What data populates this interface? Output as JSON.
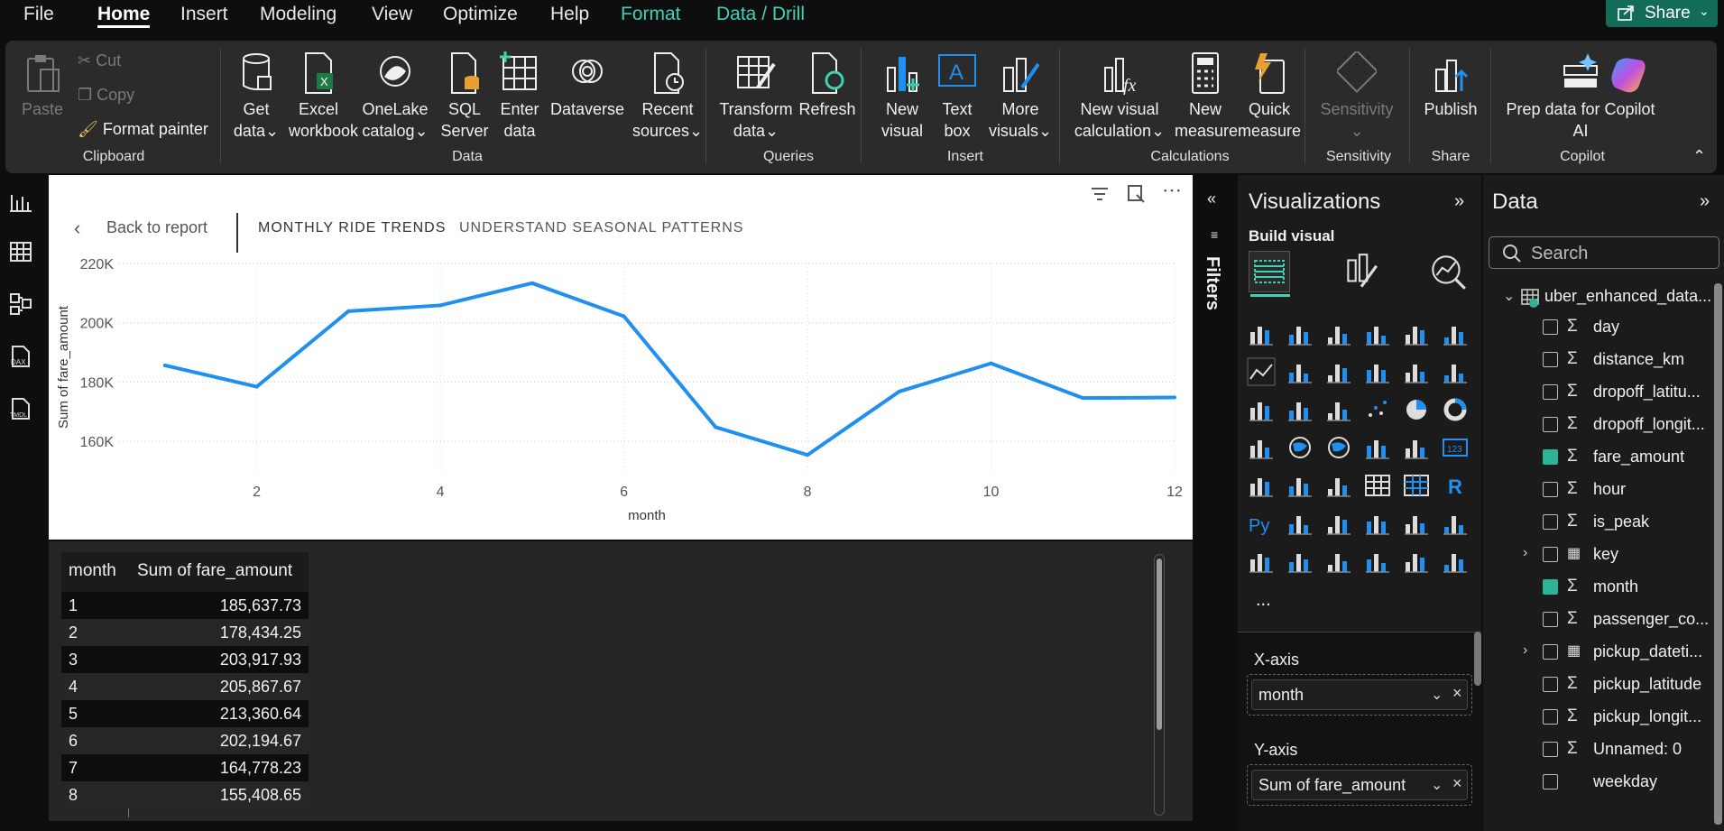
{
  "menu": {
    "items": [
      "File",
      "Home",
      "Insert",
      "Modeling",
      "View",
      "Optimize",
      "Help",
      "Format",
      "Data / Drill"
    ],
    "share_label": "Share"
  },
  "ribbon": {
    "clipboard": {
      "paste": "Paste",
      "cut": "Cut",
      "copy": "Copy",
      "format_painter": "Format painter",
      "label": "Clipboard"
    },
    "data": {
      "get_data": [
        "Get",
        "data"
      ],
      "excel": [
        "Excel",
        "workbook"
      ],
      "onelake": [
        "OneLake",
        "catalog"
      ],
      "sql": [
        "SQL",
        "Server"
      ],
      "enter": [
        "Enter",
        "data"
      ],
      "dataverse": [
        "Dataverse"
      ],
      "recent": [
        "Recent",
        "sources"
      ],
      "label": "Data"
    },
    "queries": {
      "transform": [
        "Transform",
        "data"
      ],
      "refresh": [
        "Refresh"
      ],
      "label": "Queries"
    },
    "insert": {
      "new_visual": [
        "New",
        "visual"
      ],
      "text_box": [
        "Text",
        "box"
      ],
      "more_visuals": [
        "More",
        "visuals"
      ],
      "label": "Insert"
    },
    "calculations": {
      "new_visual_calc": [
        "New visual",
        "calculation"
      ],
      "new_measure": [
        "New",
        "measure"
      ],
      "quick_measure": [
        "Quick",
        "measure"
      ],
      "label": "Calculations"
    },
    "sensitivity": {
      "btn": [
        "Sensitivity"
      ],
      "label": "Sensitivity"
    },
    "share": {
      "publish": [
        "Publish"
      ],
      "label": "Share"
    },
    "copilot": {
      "prep": [
        "Prep data for Copilot",
        "AI"
      ],
      "label": "Copilot"
    }
  },
  "canvas": {
    "back_label": "Back to report",
    "tab_active": "MONTHLY RIDE TRENDS",
    "tab_other": "UNDERSTAND SEASONAL PATTERNS"
  },
  "chart_data": {
    "type": "line",
    "x": [
      1,
      2,
      3,
      4,
      5,
      6,
      7,
      8,
      9,
      10,
      11,
      12
    ],
    "series": [
      {
        "values": [
          185637.73,
          178434.25,
          203917.93,
          205867.67,
          213360.64,
          202194.67,
          164778.23,
          155408.65,
          176800,
          186300,
          174600,
          174800
        ]
      }
    ],
    "xlabel": "month",
    "ylabel": "Sum of fare_amount",
    "x_ticks": [
      "2",
      "4",
      "6",
      "8",
      "10",
      "12"
    ],
    "y_ticks": [
      "160K",
      "180K",
      "200K",
      "220K"
    ],
    "ylim": [
      150000,
      220000
    ],
    "xlim": [
      0.5,
      12
    ],
    "line_color": "#1f8ff0",
    "grid": true
  },
  "table": {
    "headers": [
      "month",
      "Sum of fare_amount"
    ],
    "rows": [
      [
        "1",
        "185,637.73"
      ],
      [
        "2",
        "178,434.25"
      ],
      [
        "3",
        "203,917.93"
      ],
      [
        "4",
        "205,867.67"
      ],
      [
        "5",
        "213,360.64"
      ],
      [
        "6",
        "202,194.67"
      ],
      [
        "7",
        "164,778.23"
      ],
      [
        "8",
        "155,408.65"
      ]
    ]
  },
  "filters_label": "Filters",
  "viz": {
    "title": "Visualizations",
    "build": "Build visual",
    "more": "...",
    "x_axis_label": "X-axis",
    "x_axis_field": "month",
    "y_axis_label": "Y-axis",
    "y_axis_field": "Sum of fare_amount"
  },
  "data_pane": {
    "title": "Data",
    "search_placeholder": "Search",
    "table_name": "uber_enhanced_data...",
    "fields": [
      {
        "name": "day",
        "sigma": true,
        "checked": false,
        "expand": false
      },
      {
        "name": "distance_km",
        "sigma": true,
        "checked": false,
        "expand": false
      },
      {
        "name": "dropoff_latitu...",
        "sigma": true,
        "checked": false,
        "expand": false
      },
      {
        "name": "dropoff_longit...",
        "sigma": true,
        "checked": false,
        "expand": false
      },
      {
        "name": "fare_amount",
        "sigma": true,
        "checked": true,
        "expand": false
      },
      {
        "name": "hour",
        "sigma": true,
        "checked": false,
        "expand": false
      },
      {
        "name": "is_peak",
        "sigma": true,
        "checked": false,
        "expand": false
      },
      {
        "name": "key",
        "sigma": false,
        "checked": false,
        "expand": true
      },
      {
        "name": "month",
        "sigma": true,
        "checked": true,
        "expand": false
      },
      {
        "name": "passenger_co...",
        "sigma": true,
        "checked": false,
        "expand": false
      },
      {
        "name": "pickup_dateti...",
        "sigma": false,
        "checked": false,
        "expand": true
      },
      {
        "name": "pickup_latitude",
        "sigma": true,
        "checked": false,
        "expand": false
      },
      {
        "name": "pickup_longit...",
        "sigma": true,
        "checked": false,
        "expand": false
      },
      {
        "name": "Unnamed: 0",
        "sigma": true,
        "checked": false,
        "expand": false
      },
      {
        "name": "weekday",
        "sigma": false,
        "checked": false,
        "expand": false
      }
    ]
  },
  "colors": {
    "accent": "#3fd1b4",
    "share_bg": "#136c57",
    "line": "#1f8ff0"
  }
}
